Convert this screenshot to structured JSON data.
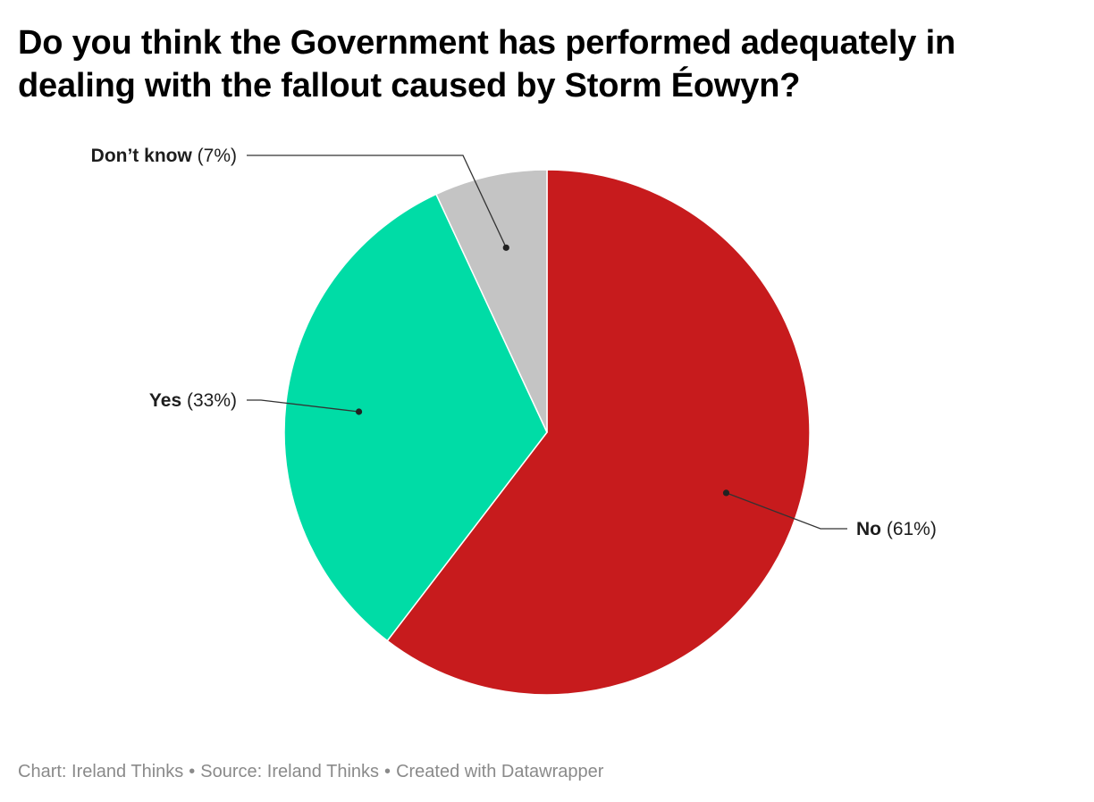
{
  "chart_data": {
    "type": "pie",
    "title": "Do you think the Government has performed adequately in dealing with the fallout caused by Storm Éowyn?",
    "slices": [
      {
        "label": "No",
        "value": 61,
        "value_label": "(61%)",
        "color": "#c71b1d"
      },
      {
        "label": "Yes",
        "value": 33,
        "value_label": "(33%)",
        "color": "#00dca6"
      },
      {
        "label": "Don’t know",
        "value": 7,
        "value_label": "(7%)",
        "color": "#c4c4c4"
      }
    ]
  },
  "footer": {
    "chart_credit": "Chart: Ireland Thinks",
    "separator": "•",
    "source": "Source: Ireland Thinks",
    "created_with": "Created with Datawrapper"
  }
}
